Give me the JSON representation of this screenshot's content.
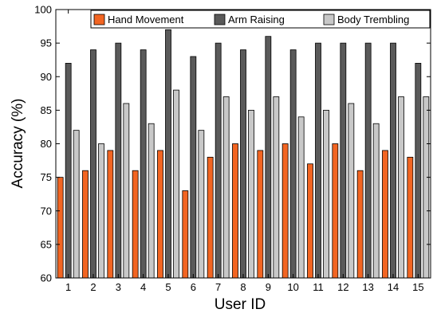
{
  "chart_data": {
    "type": "bar",
    "xlabel": "User ID",
    "ylabel": "Accuracy (%)",
    "ylim": [
      60,
      100
    ],
    "yticks": [
      60,
      65,
      70,
      75,
      80,
      85,
      90,
      95,
      100
    ],
    "categories": [
      "1",
      "2",
      "3",
      "4",
      "5",
      "6",
      "7",
      "8",
      "9",
      "10",
      "11",
      "12",
      "13",
      "14",
      "15"
    ],
    "series": [
      {
        "name": "Hand Movement",
        "color": "#f26522",
        "values": [
          75,
          76,
          79,
          76,
          79,
          73,
          78,
          80,
          79,
          80,
          77,
          80,
          76,
          79,
          78
        ]
      },
      {
        "name": "Arm Raising",
        "color": "#5a5a5a",
        "values": [
          92,
          94,
          95,
          94,
          97,
          93,
          95,
          94,
          96,
          94,
          95,
          95,
          95,
          95,
          92
        ]
      },
      {
        "name": "Body Trembling",
        "color": "#c8c8c8",
        "values": [
          82,
          80,
          86,
          83,
          88,
          82,
          87,
          85,
          87,
          84,
          85,
          86,
          83,
          87,
          87
        ]
      }
    ],
    "legend_position": "top-right",
    "grid": false
  }
}
